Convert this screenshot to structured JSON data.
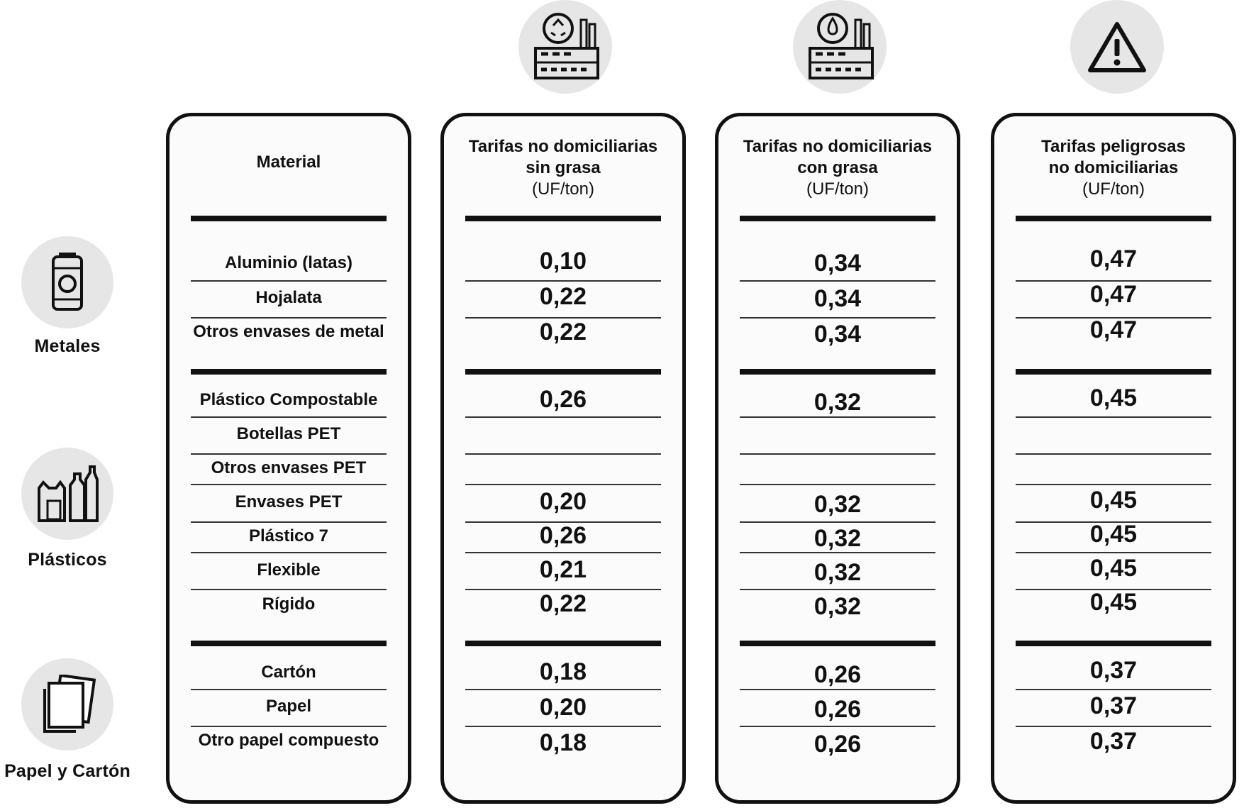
{
  "categories": [
    {
      "label": "Metales",
      "icon": "can-icon"
    },
    {
      "label": "Plásticos",
      "icon": "plastic-bottles-icon"
    },
    {
      "label": "Papel y Cartón",
      "icon": "paper-sheets-icon"
    }
  ],
  "column_icons": [
    "recycling-factory-icon",
    "oil-factory-icon",
    "warning-icon"
  ],
  "headers": {
    "material": "Material",
    "col1": {
      "line1": "Tarifas no domiciliarias",
      "line2": "sin grasa",
      "unit": "(UF/ton)"
    },
    "col2": {
      "line1": "Tarifas no domiciliarias",
      "line2": "con grasa",
      "unit": "(UF/ton)"
    },
    "col3": {
      "line1": "Tarifas peligrosas",
      "line2": "no domiciliarias",
      "unit": "(UF/ton)"
    }
  },
  "rows": [
    {
      "material": "Aluminio (latas)",
      "v1": "0,10",
      "v2": "0,34",
      "v3": "0,47"
    },
    {
      "material": "Hojalata",
      "v1": "0,22",
      "v2": "0,34",
      "v3": "0,47"
    },
    {
      "material": "Otros envases de metal",
      "v1": "0,22",
      "v2": "0,34",
      "v3": "0,47"
    },
    {
      "material": "Plástico Compostable",
      "v1": "0,26",
      "v2": "0,32",
      "v3": "0,45"
    },
    {
      "material": "Botellas PET",
      "v1": "",
      "v2": "",
      "v3": ""
    },
    {
      "material": "Otros envases PET",
      "v1": "",
      "v2": "",
      "v3": ""
    },
    {
      "material": "Envases PET",
      "v1": "0,20",
      "v2": "0,32",
      "v3": "0,45"
    },
    {
      "material": "Plástico 7",
      "v1": "0,26",
      "v2": "0,32",
      "v3": "0,45"
    },
    {
      "material": "Flexible",
      "v1": "0,21",
      "v2": "0,32",
      "v3": "0,45"
    },
    {
      "material": "Rígido",
      "v1": "0,22",
      "v2": "0,32",
      "v3": "0,45"
    },
    {
      "material": "Cartón",
      "v1": "0,18",
      "v2": "0,26",
      "v3": "0,37"
    },
    {
      "material": "Papel",
      "v1": "0,20",
      "v2": "0,26",
      "v3": "0,37"
    },
    {
      "material": "Otro papel  compuesto",
      "v1": "0,18",
      "v2": "0,26",
      "v3": "0,37"
    }
  ]
}
